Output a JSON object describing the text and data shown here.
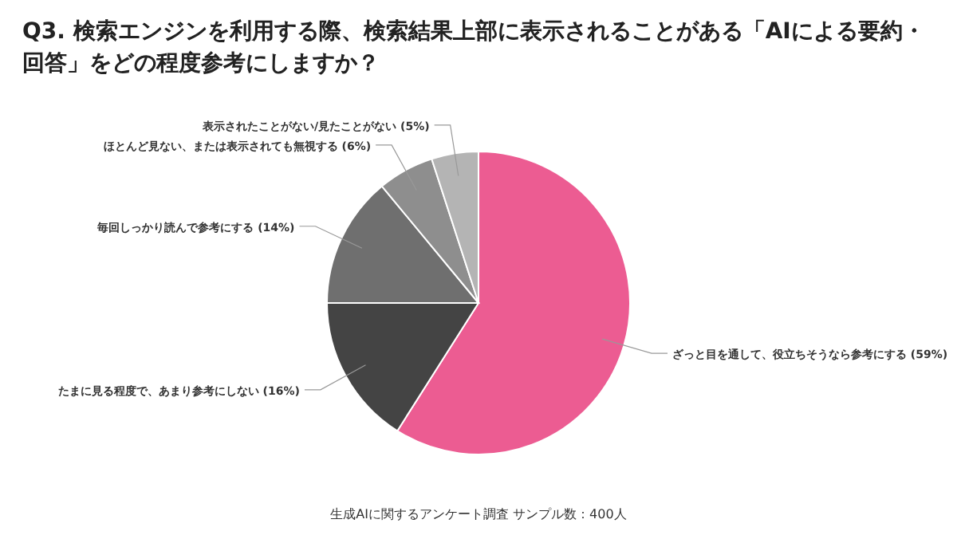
{
  "chart_data": {
    "type": "pie",
    "title": "Q3. 検索エンジンを利用する際、検索結果上部に表示されることがある「AIによる要約・回答」をどの程度参考にしますか？",
    "categories": [
      "ざっと目を通して、役立ちそうなら参考にする (59%)",
      "たまに見る程度で、あまり参考にしない (16%)",
      "毎回しっかり読んで参考にする (14%)",
      "ほとんど見ない、または表示されても無視する (6%)",
      "表示されたことがない/見たことがない (5%)"
    ],
    "values": [
      59,
      16,
      14,
      6,
      5
    ],
    "colors": [
      "#ec5c92",
      "#444444",
      "#6f6f6f",
      "#8e8e8e",
      "#b4b4b4"
    ],
    "annotations": [
      "生成AIに関するアンケート調査 サンプル数：400人"
    ]
  }
}
